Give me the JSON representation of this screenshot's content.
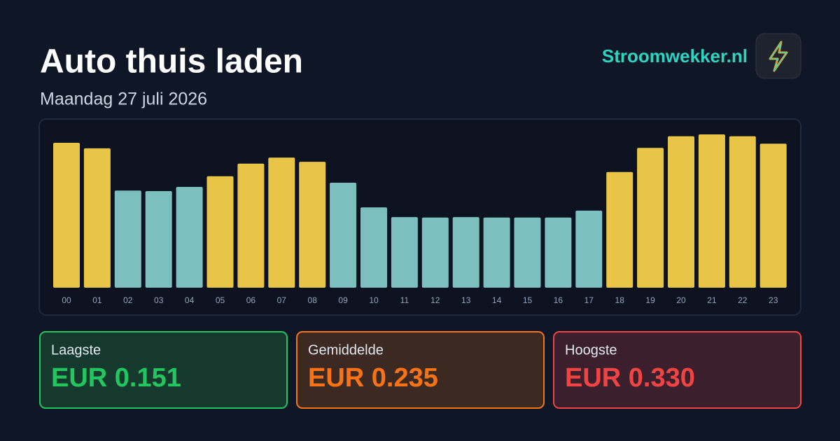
{
  "header": {
    "title": "Auto thuis laden",
    "subtitle": "Maandag 27 juli 2026",
    "brand": "Stroomwekker.nl"
  },
  "chart_data": {
    "type": "bar",
    "categories": [
      "00",
      "01",
      "02",
      "03",
      "04",
      "05",
      "06",
      "07",
      "08",
      "09",
      "10",
      "11",
      "12",
      "13",
      "14",
      "15",
      "16",
      "17",
      "18",
      "19",
      "20",
      "21",
      "22",
      "23"
    ],
    "values": [
      0.312,
      0.3,
      0.209,
      0.208,
      0.217,
      0.24,
      0.267,
      0.28,
      0.271,
      0.226,
      0.173,
      0.152,
      0.151,
      0.152,
      0.151,
      0.151,
      0.151,
      0.166,
      0.249,
      0.301,
      0.326,
      0.33,
      0.326,
      0.31
    ],
    "colors": [
      "#e8c547",
      "#e8c547",
      "#7bbfbf",
      "#7bbfbf",
      "#7bbfbf",
      "#e8c547",
      "#e8c547",
      "#e8c547",
      "#e8c547",
      "#7bbfbf",
      "#7bbfbf",
      "#7bbfbf",
      "#7bbfbf",
      "#7bbfbf",
      "#7bbfbf",
      "#7bbfbf",
      "#7bbfbf",
      "#7bbfbf",
      "#e8c547",
      "#e8c547",
      "#e8c547",
      "#e8c547",
      "#e8c547",
      "#e8c547"
    ],
    "ylim": [
      0,
      0.33
    ]
  },
  "stats": [
    {
      "label": "Laagste",
      "value": "EUR 0.151",
      "color": "#22c55e",
      "background": "#153a2d"
    },
    {
      "label": "Gemiddelde",
      "value": "EUR 0.235",
      "color": "#f97316",
      "background": "#3c2a22"
    },
    {
      "label": "Hoogste",
      "value": "EUR 0.330",
      "color": "#ef4444",
      "background": "#3b1f2c"
    }
  ]
}
